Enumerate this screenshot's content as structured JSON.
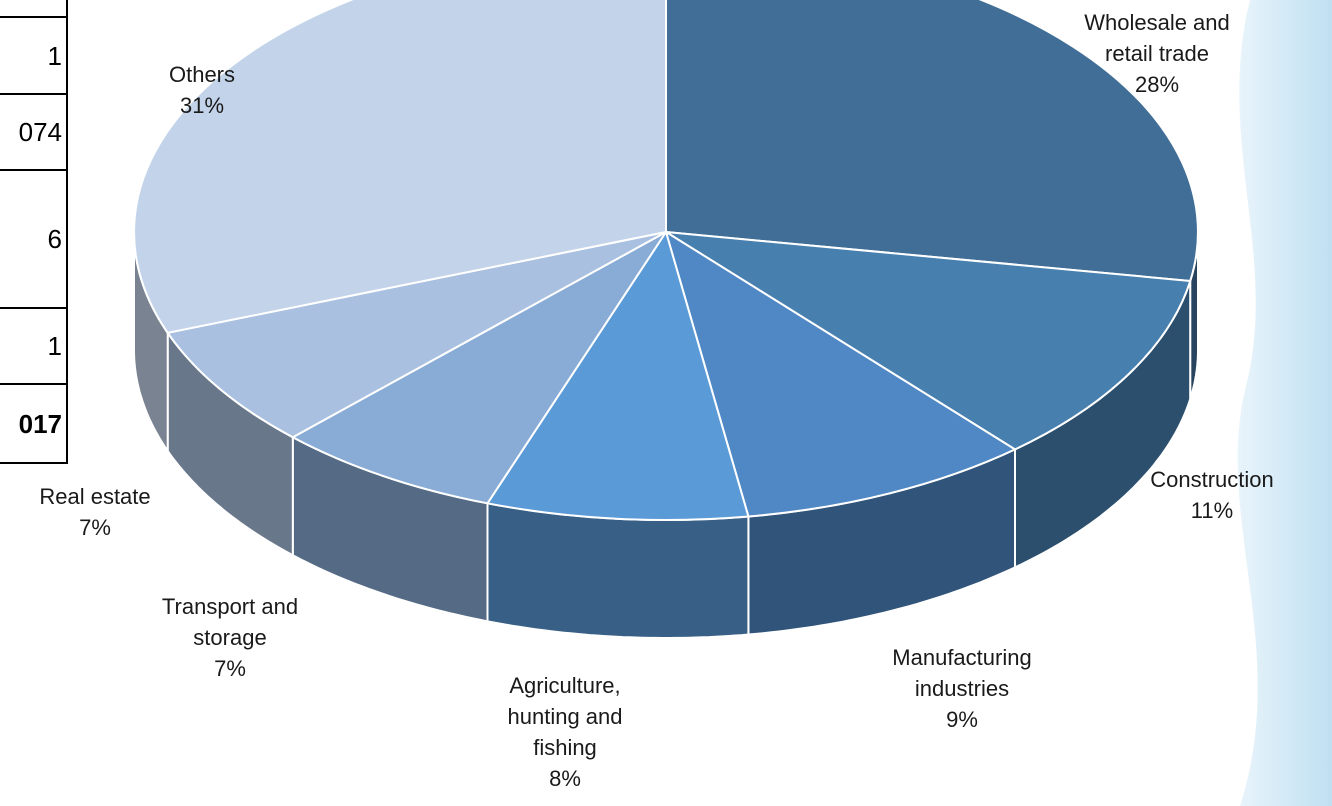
{
  "table_fragment": {
    "cells": [
      "",
      "1",
      "074",
      "6",
      "1",
      "017"
    ]
  },
  "chart_data": {
    "type": "pie",
    "style": "3d-exploded-perspective",
    "start_angle_deg": 0,
    "direction": "clockwise",
    "slices": [
      {
        "label": [
          "Wholesale and",
          "retail trade"
        ],
        "percent_label": "28%",
        "value": 28,
        "color": "#406e97"
      },
      {
        "label": [
          "Construction"
        ],
        "percent_label": "11%",
        "value": 11,
        "color": "#477faf"
      },
      {
        "label": [
          "Manufacturing",
          "industries"
        ],
        "percent_label": "9%",
        "value": 9,
        "color": "#4f88c4"
      },
      {
        "label": [
          "Agriculture,",
          "hunting and",
          "fishing"
        ],
        "percent_label": "8%",
        "value": 8,
        "color": "#5a9ad6"
      },
      {
        "label": [
          "Transport and",
          "storage"
        ],
        "percent_label": "7%",
        "value": 7,
        "color": "#89acd6"
      },
      {
        "label": [
          "Real estate"
        ],
        "percent_label": "7%",
        "value": 7,
        "color": "#a9c0e0"
      },
      {
        "label": [
          "Others"
        ],
        "percent_label": "31%",
        "value": 31,
        "color": "#c3d4ea"
      }
    ]
  }
}
